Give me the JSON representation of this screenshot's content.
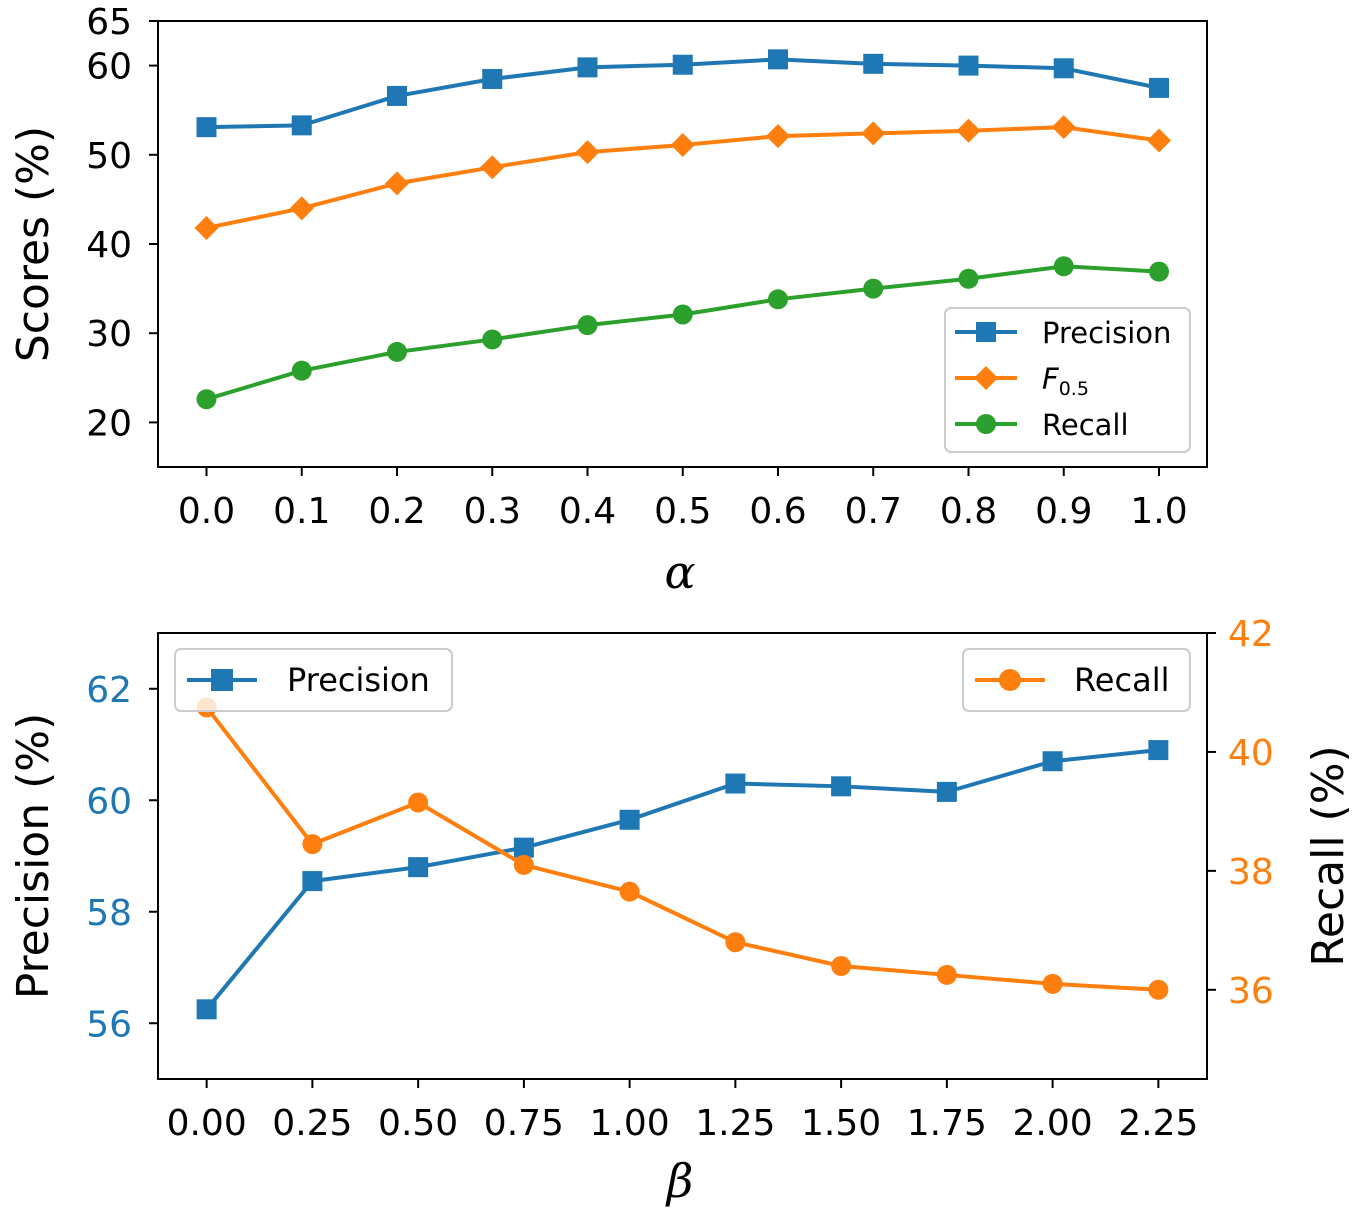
{
  "colors": {
    "blue": "#1f77b4",
    "orange": "#ff7f0e",
    "green": "#2ca02c"
  },
  "chart_data": [
    {
      "type": "line",
      "xlabel": "α",
      "ylabel": "Scores (%)",
      "x": [
        0.0,
        0.1,
        0.2,
        0.3,
        0.4,
        0.5,
        0.6,
        0.7,
        0.8,
        0.9,
        1.0
      ],
      "xtick_labels": [
        "0.0",
        "0.1",
        "0.2",
        "0.3",
        "0.4",
        "0.5",
        "0.6",
        "0.7",
        "0.8",
        "0.9",
        "1.0"
      ],
      "ylim": [
        15,
        65
      ],
      "yticks": [
        20,
        30,
        40,
        50,
        60,
        65
      ],
      "legend": "bottom-right",
      "series": [
        {
          "name": "Precision",
          "marker": "square",
          "color": "#1f77b4",
          "values": [
            53.1,
            53.3,
            56.6,
            58.5,
            59.8,
            60.1,
            60.7,
            60.2,
            60.0,
            59.7,
            57.5
          ]
        },
        {
          "name": "F",
          "subscript": "0.5",
          "marker": "diamond",
          "color": "#ff7f0e",
          "values": [
            41.8,
            44.0,
            46.8,
            48.6,
            50.3,
            51.1,
            52.1,
            52.4,
            52.7,
            53.1,
            51.6
          ]
        },
        {
          "name": "Recall",
          "marker": "circle",
          "color": "#2ca02c",
          "values": [
            22.6,
            25.8,
            27.9,
            29.3,
            30.9,
            32.1,
            33.8,
            35.0,
            36.1,
            37.5,
            36.9
          ]
        }
      ]
    },
    {
      "type": "line",
      "xlabel": "β",
      "ylabel": "Precision (%)",
      "ylabel_right": "Recall (%)",
      "x": [
        0.0,
        0.25,
        0.5,
        0.75,
        1.0,
        1.25,
        1.5,
        1.75,
        2.0,
        2.25
      ],
      "xtick_labels": [
        "0.00",
        "0.25",
        "0.50",
        "0.75",
        "1.00",
        "1.25",
        "1.50",
        "1.75",
        "2.00",
        "2.25"
      ],
      "xlim": [
        -0.115,
        2.365
      ],
      "ylim": [
        55,
        63
      ],
      "yticks": [
        56,
        58,
        60,
        62
      ],
      "ylim_right": [
        34.5,
        42
      ],
      "yticks_right": [
        36,
        38,
        40,
        42
      ],
      "legend": "top-left (Precision), top-right (Recall)",
      "series": [
        {
          "name": "Precision",
          "axis": "left",
          "marker": "square",
          "color": "#1f77b4",
          "values": [
            56.25,
            58.55,
            58.8,
            59.15,
            59.65,
            60.3,
            60.25,
            60.15,
            60.7,
            60.9
          ]
        },
        {
          "name": "Recall",
          "axis": "right",
          "marker": "circle",
          "color": "#ff7f0e",
          "values": [
            40.75,
            38.45,
            39.15,
            38.1,
            37.65,
            36.8,
            36.4,
            36.25,
            36.1,
            36.0
          ]
        }
      ]
    }
  ]
}
